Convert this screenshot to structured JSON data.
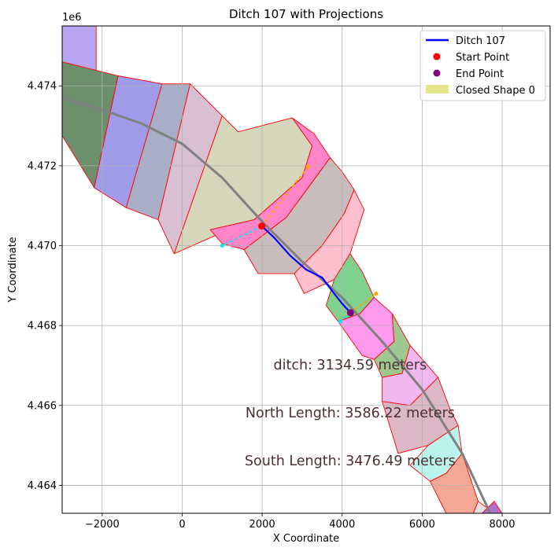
{
  "chart_data": {
    "type": "line",
    "title": "Ditch 107 with Projections",
    "xlabel": "X Coordinate",
    "ylabel": "Y Coordinate",
    "y_offset_label": "1e6",
    "xlim": [
      -3000,
      9200
    ],
    "ylim": [
      4463300,
      4475500
    ],
    "x_ticks": [
      -2000,
      0,
      2000,
      4000,
      6000,
      8000
    ],
    "x_tick_labels": [
      "−2000",
      "0",
      "2000",
      "4000",
      "6000",
      "8000"
    ],
    "y_ticks": [
      4464000,
      4466000,
      4468000,
      4470000,
      4472000,
      4474000
    ],
    "y_tick_labels": [
      "4.464",
      "4.466",
      "4.468",
      "4.470",
      "4.472",
      "4.474"
    ],
    "grid": true,
    "legend_position": "upper right",
    "legend": [
      {
        "label": "Ditch 107",
        "kind": "line",
        "color": "#0000ff"
      },
      {
        "label": "Start Point",
        "kind": "point",
        "color": "#ff0000"
      },
      {
        "label": "End Point",
        "kind": "point",
        "color": "#800080"
      },
      {
        "label": "Closed Shape 0",
        "kind": "patch",
        "color": "#dede6e"
      }
    ],
    "annotations": [
      {
        "text": "ditch: 3134.59 meters",
        "x": 4200,
        "y": 4466900
      },
      {
        "text": "North Length: 3586.22 meters",
        "x": 4200,
        "y": 4465700
      },
      {
        "text": "South Length: 3476.49 meters",
        "x": 4200,
        "y": 4464500
      }
    ],
    "centerline": {
      "color": "#808080",
      "x": [
        -3000,
        -2000,
        -1000,
        0,
        1000,
        2000,
        3000,
        4000,
        5000,
        6000,
        7000,
        7700
      ],
      "y": [
        4473700,
        4473400,
        4473050,
        4472550,
        4471700,
        4470600,
        4469600,
        4468700,
        4467600,
        4466400,
        4464800,
        4463300
      ]
    },
    "ditch_series": {
      "name": "Ditch 107",
      "color": "#0000ff",
      "x": [
        1990,
        2300,
        2700,
        3100,
        3500,
        3800,
        4000,
        4210
      ],
      "y": [
        4470490,
        4470200,
        4469750,
        4469400,
        4469200,
        4468800,
        4468550,
        4468320
      ]
    },
    "start_point": {
      "x": 1990,
      "y": 4470490,
      "color": "#ff0000"
    },
    "end_point": {
      "x": 4210,
      "y": 4468320,
      "color": "#800080"
    },
    "projections": [
      {
        "color": "#00e5ee",
        "x": [
          1990,
          1000
        ],
        "y": [
          4470490,
          4470000
        ]
      },
      {
        "color": "#ffa500",
        "x": [
          1990,
          3150
        ],
        "y": [
          4470490,
          4471980
        ]
      },
      {
        "color": "#00e5ee",
        "x": [
          4210,
          3950
        ],
        "y": [
          4468320,
          4468100
        ]
      },
      {
        "color": "#ffa500",
        "x": [
          4210,
          4850
        ],
        "y": [
          4468320,
          4468800
        ]
      }
    ],
    "segments": [
      {
        "fill": "#b9a6f0",
        "points": [
          [
            -3000,
            4476200
          ],
          [
            -3000,
            4474600
          ],
          [
            -2150,
            4474300
          ],
          [
            -2150,
            4476200
          ]
        ]
      },
      {
        "fill": "#6e8f6e",
        "points": [
          [
            -3000,
            4474600
          ],
          [
            -1600,
            4474250
          ],
          [
            -2200,
            4471450
          ],
          [
            -3000,
            4472750
          ]
        ]
      },
      {
        "fill": "#a09be8",
        "points": [
          [
            -1600,
            4474250
          ],
          [
            -500,
            4474050
          ],
          [
            -1400,
            4470950
          ],
          [
            -2200,
            4471450
          ]
        ]
      },
      {
        "fill": "#a7aec6",
        "points": [
          [
            -500,
            4474050
          ],
          [
            200,
            4474050
          ],
          [
            -600,
            4470650
          ],
          [
            -1400,
            4470950
          ]
        ]
      },
      {
        "fill": "#d8c0d2",
        "points": [
          [
            200,
            4474050
          ],
          [
            1000,
            4473250
          ],
          [
            -200,
            4469800
          ],
          [
            -600,
            4470650
          ]
        ]
      },
      {
        "fill": "#d6d6bc",
        "points": [
          [
            1000,
            4473250
          ],
          [
            1400,
            4472850
          ],
          [
            2750,
            4473200
          ],
          [
            3250,
            4472500
          ],
          [
            3000,
            4471700
          ],
          [
            1800,
            4470650
          ],
          [
            1050,
            4470350
          ],
          [
            -200,
            4469800
          ]
        ]
      },
      {
        "fill": "#ff85c8",
        "points": [
          [
            2750,
            4473200
          ],
          [
            3300,
            4472800
          ],
          [
            3700,
            4472200
          ],
          [
            2600,
            4470700
          ],
          [
            1550,
            4469900
          ],
          [
            1000,
            4470050
          ],
          [
            700,
            4470400
          ],
          [
            1800,
            4470650
          ],
          [
            3000,
            4471700
          ],
          [
            3250,
            4472500
          ]
        ]
      },
      {
        "fill": "#c8bcbc",
        "points": [
          [
            3700,
            4472200
          ],
          [
            4000,
            4471850
          ],
          [
            4300,
            4471400
          ],
          [
            4050,
            4470800
          ],
          [
            3500,
            4470000
          ],
          [
            2800,
            4469300
          ],
          [
            1900,
            4469300
          ],
          [
            1550,
            4469900
          ],
          [
            2600,
            4470700
          ]
        ]
      },
      {
        "fill": "#ffbfcf",
        "points": [
          [
            4300,
            4471400
          ],
          [
            4550,
            4470900
          ],
          [
            4200,
            4469800
          ],
          [
            3800,
            4469150
          ],
          [
            3050,
            4468800
          ],
          [
            2800,
            4469300
          ],
          [
            3500,
            4470000
          ],
          [
            4050,
            4470800
          ]
        ]
      },
      {
        "fill": "#80d090",
        "points": [
          [
            4200,
            4469800
          ],
          [
            4500,
            4469350
          ],
          [
            4800,
            4468700
          ],
          [
            4450,
            4468300
          ],
          [
            3900,
            4468100
          ],
          [
            3600,
            4468500
          ],
          [
            3800,
            4469150
          ]
        ]
      },
      {
        "fill": "#ff99ee",
        "points": [
          [
            4800,
            4468700
          ],
          [
            5250,
            4468300
          ],
          [
            5300,
            4467600
          ],
          [
            4800,
            4467150
          ],
          [
            4500,
            4467250
          ],
          [
            3900,
            4468100
          ],
          [
            4450,
            4468300
          ]
        ]
      },
      {
        "fill": "#9ec890",
        "points": [
          [
            5250,
            4468300
          ],
          [
            5700,
            4467500
          ],
          [
            5500,
            4466800
          ],
          [
            5000,
            4466700
          ],
          [
            4800,
            4467150
          ],
          [
            5300,
            4467600
          ]
        ]
      },
      {
        "fill": "#f0b8ee",
        "points": [
          [
            5700,
            4467500
          ],
          [
            6400,
            4466700
          ],
          [
            5700,
            4466000
          ],
          [
            5000,
            4466100
          ],
          [
            5000,
            4466700
          ],
          [
            5500,
            4466800
          ]
        ]
      },
      {
        "fill": "#dcb8c6",
        "points": [
          [
            6400,
            4466700
          ],
          [
            6700,
            4465900
          ],
          [
            6900,
            4465500
          ],
          [
            6150,
            4465000
          ],
          [
            5400,
            4464800
          ],
          [
            5000,
            4466100
          ],
          [
            5700,
            4466000
          ]
        ]
      },
      {
        "fill": "#baf4ec",
        "points": [
          [
            6900,
            4465500
          ],
          [
            7000,
            4464800
          ],
          [
            6600,
            4464300
          ],
          [
            6200,
            4464100
          ],
          [
            5700,
            4464500
          ],
          [
            6150,
            4465000
          ]
        ]
      },
      {
        "fill": "#f6a896",
        "points": [
          [
            7000,
            4464800
          ],
          [
            7400,
            4463600
          ],
          [
            7200,
            4463100
          ],
          [
            6700,
            4463100
          ],
          [
            6400,
            4463700
          ],
          [
            6200,
            4464100
          ],
          [
            6600,
            4464300
          ]
        ]
      },
      {
        "fill": "#e8e4e4",
        "points": [
          [
            7400,
            4463600
          ],
          [
            7800,
            4463300
          ],
          [
            7500,
            4462800
          ],
          [
            7200,
            4463100
          ]
        ]
      },
      {
        "fill": "#b070c8",
        "points": [
          [
            7800,
            4463600
          ],
          [
            8000,
            4463300
          ],
          [
            7600,
            4463100
          ],
          [
            7500,
            4463300
          ]
        ]
      }
    ]
  }
}
